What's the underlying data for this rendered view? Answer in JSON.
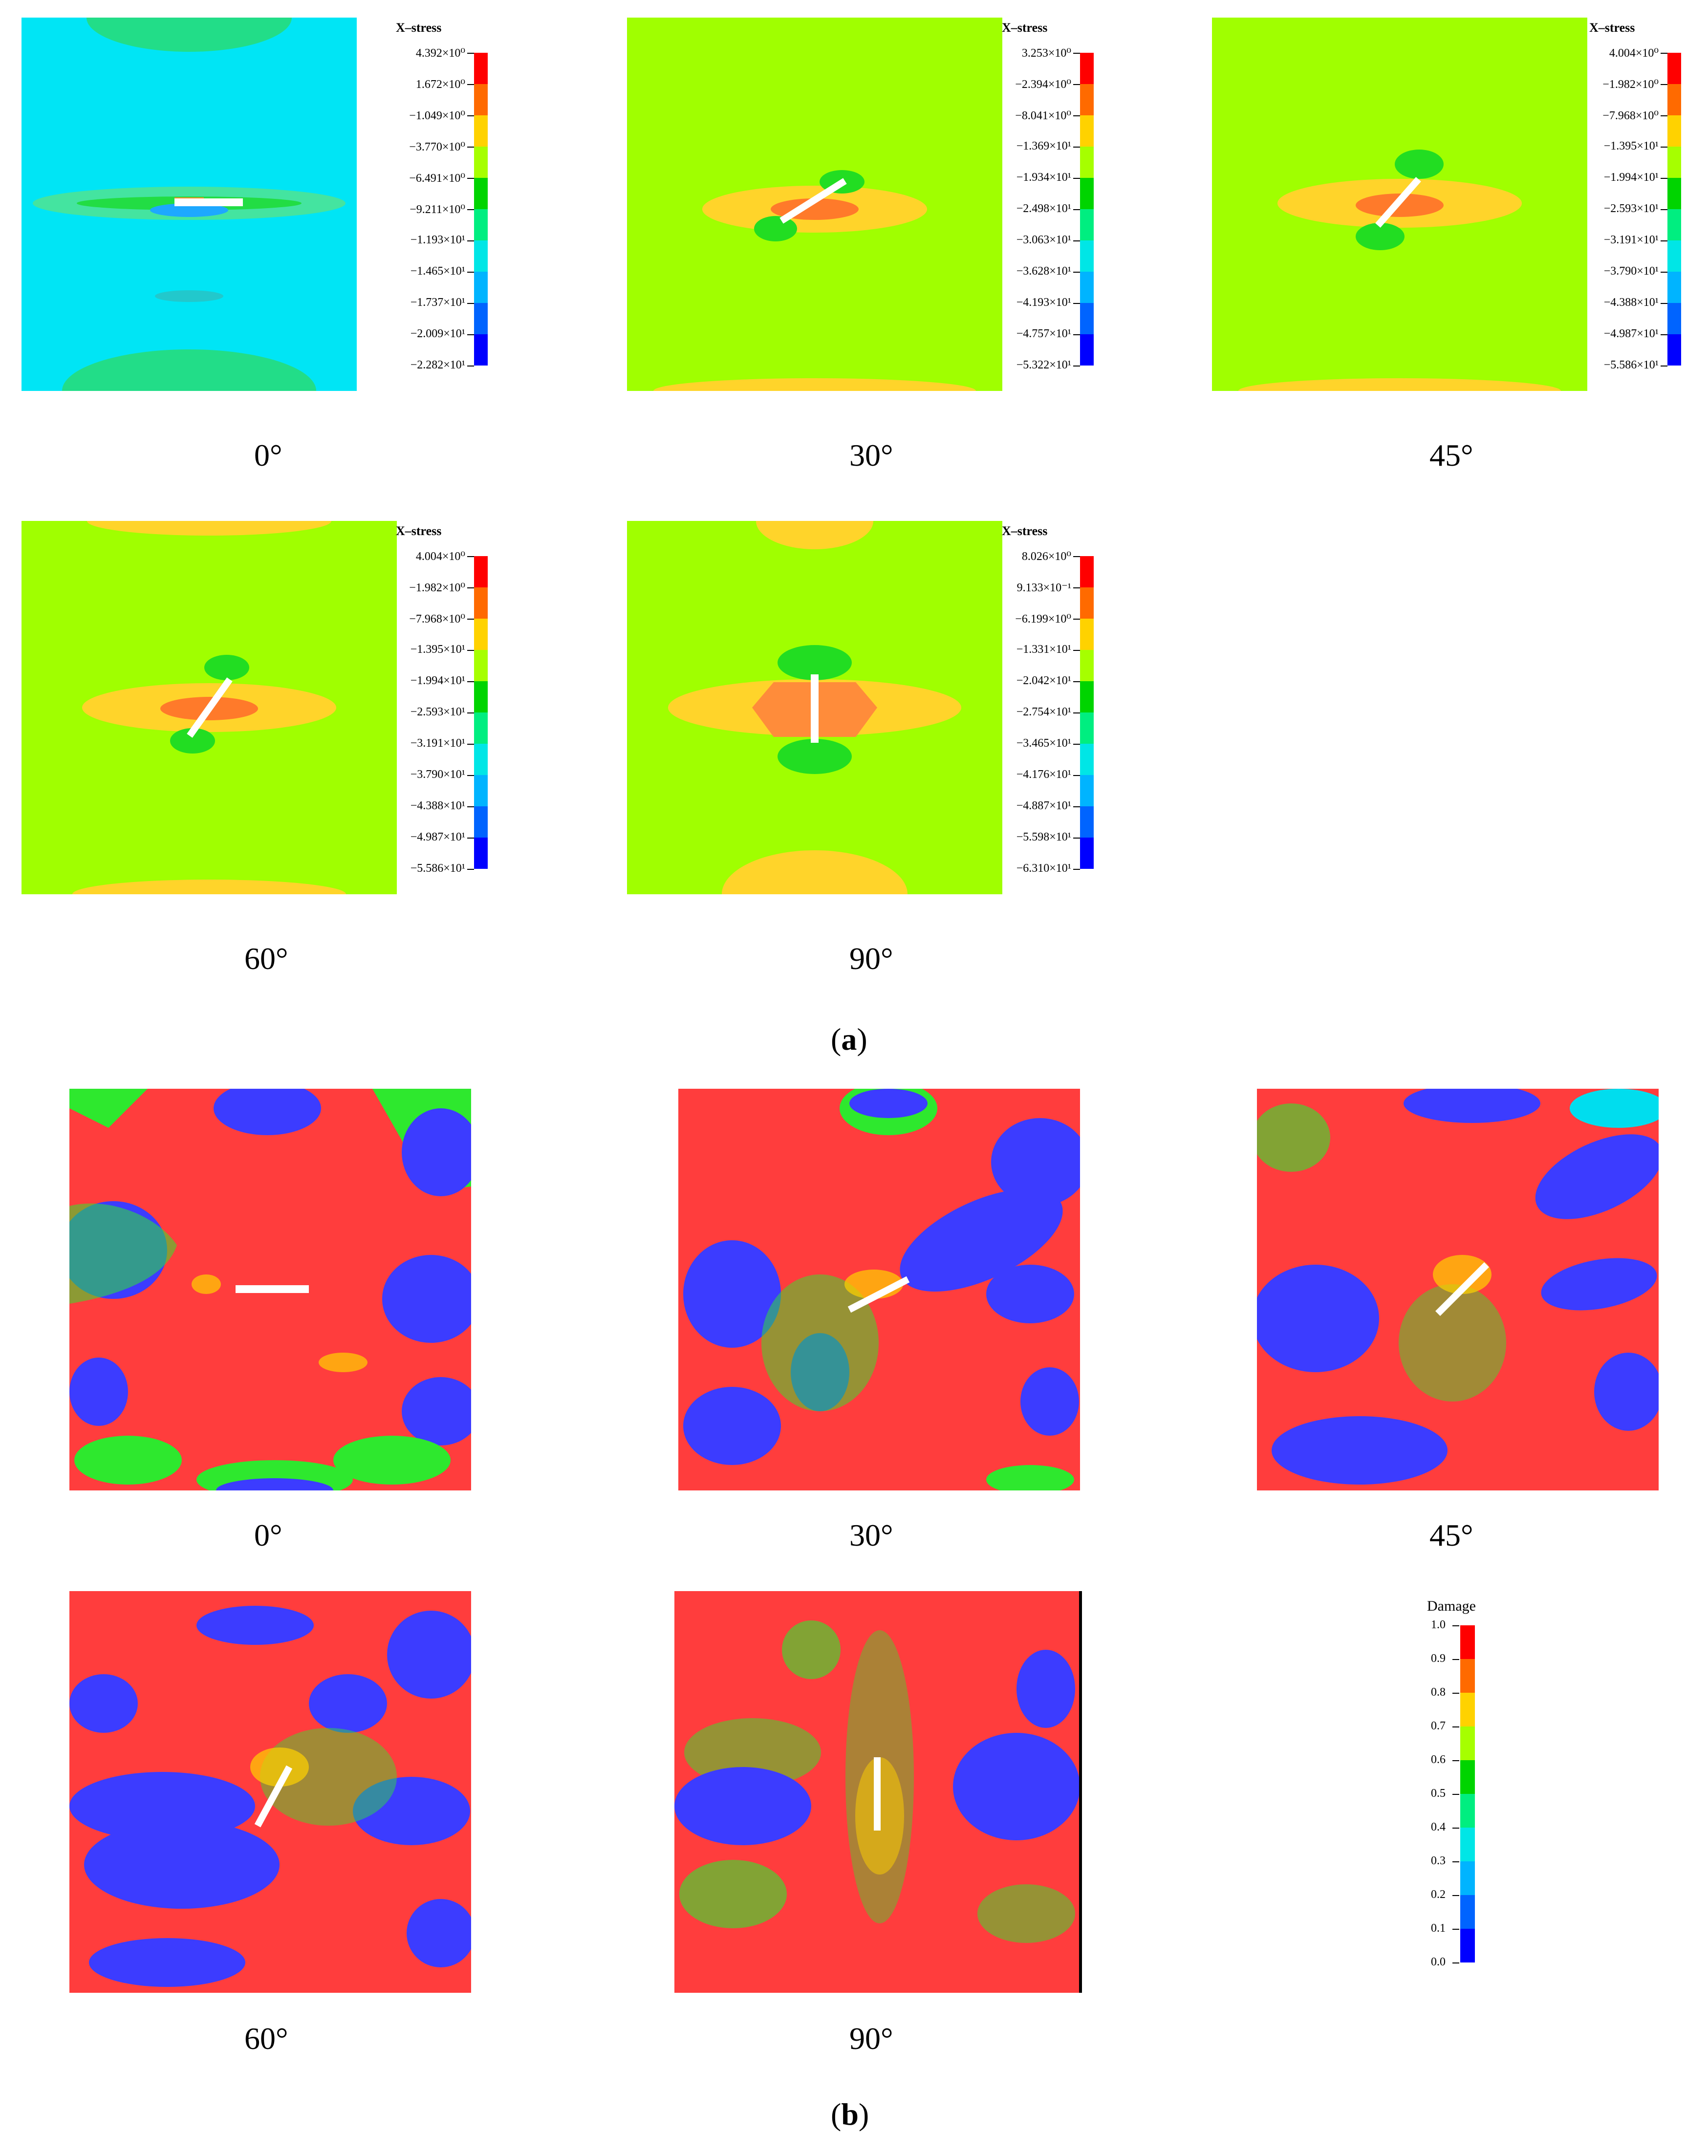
{
  "figure": {
    "part_a_label": "a",
    "part_b_label": "b"
  },
  "colors": {
    "stress_scale": [
      "#ff0000",
      "#ff6a00",
      "#ffd200",
      "#a6ff00",
      "#00d400",
      "#00ee80",
      "#00e6e6",
      "#00b4ff",
      "#0064ff",
      "#0000ff"
    ],
    "damage_scale": [
      "#ff0000",
      "#ff6a00",
      "#ffd200",
      "#a6ff00",
      "#00d400",
      "#00ee80",
      "#00e6e6",
      "#00b4ff",
      "#0064ff",
      "#0000ff"
    ],
    "stress_bg_0": "#00e5f5",
    "stress_bg": "#a0ff00",
    "stress_yellow": "#ffd42a",
    "stress_orange": "#ff7a2a",
    "stress_green": "#22dd22",
    "damage_red": "#ff3d3d",
    "damage_blue": "#3c3cff",
    "damage_green": "#2ee82e",
    "damage_yellow": "#ffd200",
    "damage_cyan": "#00ddee"
  },
  "stress_panels": [
    {
      "caption": "0°",
      "legend_title": "X–stress",
      "legend_values": [
        "4.392×10⁰",
        "1.672×10⁰",
        "−1.049×10⁰",
        "−3.770×10⁰",
        "−6.491×10⁰",
        "−9.211×10⁰",
        "−1.193×10¹",
        "−1.465×10¹",
        "−1.737×10¹",
        "−2.009×10¹",
        "−2.282×10¹"
      ]
    },
    {
      "caption": "30°",
      "legend_title": "X–stress",
      "legend_values": [
        "3.253×10⁰",
        "−2.394×10⁰",
        "−8.041×10⁰",
        "−1.369×10¹",
        "−1.934×10¹",
        "−2.498×10¹",
        "−3.063×10¹",
        "−3.628×10¹",
        "−4.193×10¹",
        "−4.757×10¹",
        "−5.322×10¹"
      ]
    },
    {
      "caption": "45°",
      "legend_title": "X–stress",
      "legend_values": [
        "4.004×10⁰",
        "−1.982×10⁰",
        "−7.968×10⁰",
        "−1.395×10¹",
        "−1.994×10¹",
        "−2.593×10¹",
        "−3.191×10¹",
        "−3.790×10¹",
        "−4.388×10¹",
        "−4.987×10¹",
        "−5.586×10¹"
      ]
    },
    {
      "caption": "60°",
      "legend_title": "X–stress",
      "legend_values": [
        "4.004×10⁰",
        "−1.982×10⁰",
        "−7.968×10⁰",
        "−1.395×10¹",
        "−1.994×10¹",
        "−2.593×10¹",
        "−3.191×10¹",
        "−3.790×10¹",
        "−4.388×10¹",
        "−4.987×10¹",
        "−5.586×10¹"
      ]
    },
    {
      "caption": "90°",
      "legend_title": "X–stress",
      "legend_values": [
        "8.026×10⁰",
        "9.133×10⁻¹",
        "−6.199×10⁰",
        "−1.331×10¹",
        "−2.042×10¹",
        "−2.754×10¹",
        "−3.465×10¹",
        "−4.176×10¹",
        "−4.887×10¹",
        "−5.598×10¹",
        "−6.310×10¹"
      ]
    }
  ],
  "damage_panels": [
    {
      "caption": "0°"
    },
    {
      "caption": "30°"
    },
    {
      "caption": "45°"
    },
    {
      "caption": "60°"
    },
    {
      "caption": "90°"
    }
  ],
  "damage_legend": {
    "title": "Damage",
    "values": [
      "1.0",
      "0.9",
      "0.8",
      "0.7",
      "0.6",
      "0.5",
      "0.4",
      "0.3",
      "0.2",
      "0.1",
      "0.0"
    ]
  }
}
